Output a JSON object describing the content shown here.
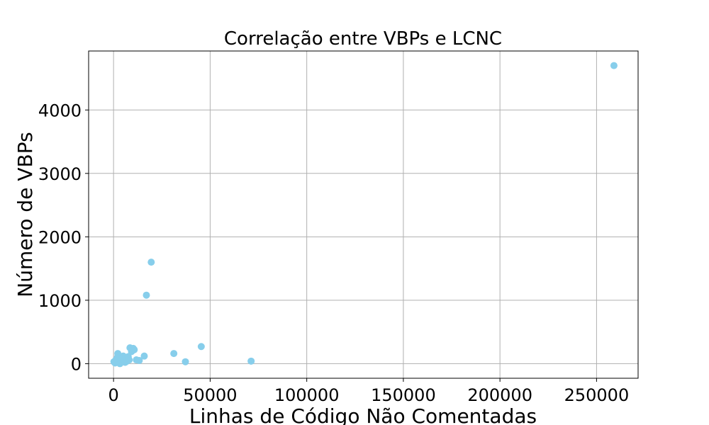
{
  "chart_data": {
    "type": "scatter",
    "title": "Correlação entre VBPs e LCNC",
    "xlabel": "Linhas de Código Não Comentadas",
    "ylabel": "Número de VBPs",
    "xlim": [
      -12900,
      271500
    ],
    "ylim": [
      -230,
      4930
    ],
    "xticks": [
      0,
      50000,
      100000,
      150000,
      200000,
      250000
    ],
    "xtick_labels": [
      "0",
      "50000",
      "100000",
      "150000",
      "200000",
      "250000"
    ],
    "yticks": [
      0,
      1000,
      2000,
      3000,
      4000
    ],
    "ytick_labels": [
      "0",
      "1000",
      "2000",
      "3000",
      "4000"
    ],
    "grid": true,
    "marker_color": "#87ceeb",
    "points": [
      {
        "x": 200,
        "y": 30
      },
      {
        "x": 800,
        "y": 10
      },
      {
        "x": 1200,
        "y": 60
      },
      {
        "x": 1500,
        "y": 40
      },
      {
        "x": 2000,
        "y": 100
      },
      {
        "x": 2200,
        "y": 160
      },
      {
        "x": 2600,
        "y": 20
      },
      {
        "x": 3000,
        "y": 70
      },
      {
        "x": 3300,
        "y": 0
      },
      {
        "x": 3800,
        "y": 50
      },
      {
        "x": 4200,
        "y": 90
      },
      {
        "x": 4600,
        "y": 30
      },
      {
        "x": 5000,
        "y": 120
      },
      {
        "x": 5400,
        "y": 60
      },
      {
        "x": 6000,
        "y": 20
      },
      {
        "x": 6500,
        "y": 80
      },
      {
        "x": 7000,
        "y": 40
      },
      {
        "x": 7600,
        "y": 110
      },
      {
        "x": 8100,
        "y": 60
      },
      {
        "x": 8500,
        "y": 250
      },
      {
        "x": 9300,
        "y": 190
      },
      {
        "x": 9800,
        "y": 210
      },
      {
        "x": 10200,
        "y": 240
      },
      {
        "x": 10700,
        "y": 220
      },
      {
        "x": 11800,
        "y": 60
      },
      {
        "x": 13300,
        "y": 50
      },
      {
        "x": 15900,
        "y": 120
      },
      {
        "x": 17000,
        "y": 1080
      },
      {
        "x": 19500,
        "y": 1600
      },
      {
        "x": 31200,
        "y": 160
      },
      {
        "x": 37200,
        "y": 30
      },
      {
        "x": 45400,
        "y": 270
      },
      {
        "x": 71200,
        "y": 40
      },
      {
        "x": 259000,
        "y": 4700
      }
    ]
  }
}
